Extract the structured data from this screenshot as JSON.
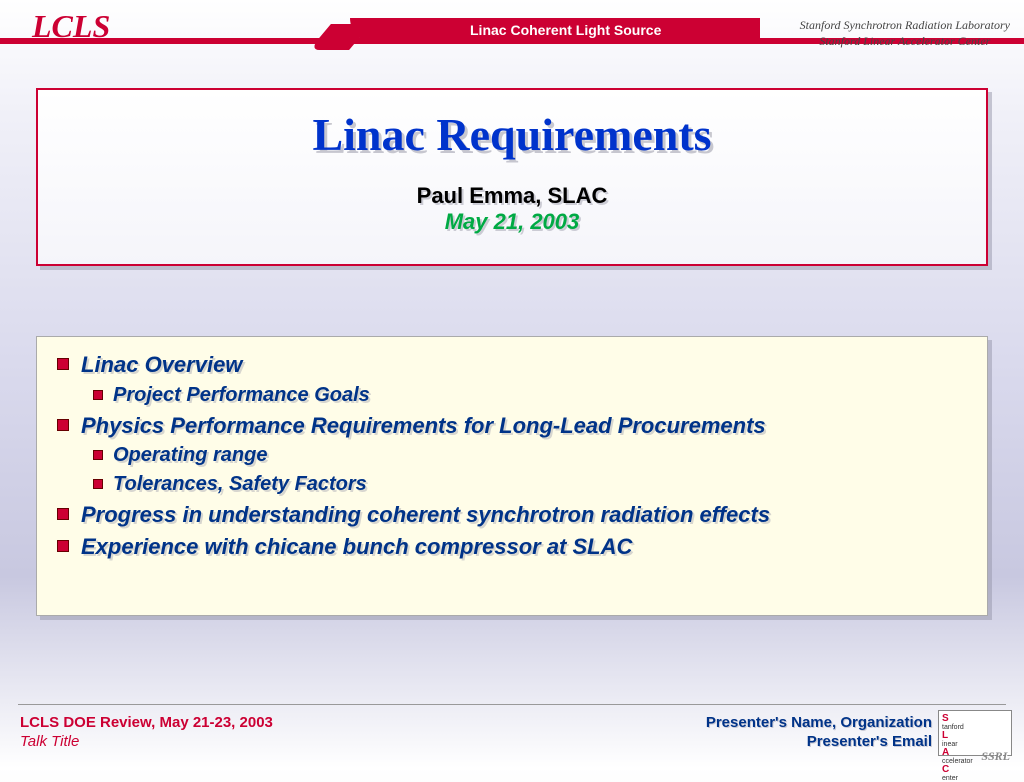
{
  "header": {
    "logo": "LCLS",
    "swoosh_text": "Linac Coherent Light Source",
    "lab_line1": "Stanford Synchrotron Radiation Laboratory",
    "lab_line2": "Stanford Linear Accelerator Center",
    "accent_color": "#cc0033"
  },
  "title_box": {
    "title": "Linac Requirements",
    "author": "Paul Emma, SLAC",
    "date": "May 21, 2003",
    "title_color": "#0033cc",
    "date_color": "#00aa44",
    "border_color": "#cc0033"
  },
  "content": {
    "background_color": "#fffde8",
    "text_color": "#003388",
    "bullet_color": "#cc0033",
    "items": [
      {
        "level": 1,
        "text": "Linac Overview"
      },
      {
        "level": 2,
        "text": "Project Performance Goals"
      },
      {
        "level": 1,
        "text": "Physics Performance Requirements for Long-Lead Procurements"
      },
      {
        "level": 2,
        "text": "Operating range"
      },
      {
        "level": 2,
        "text": "Tolerances, Safety Factors"
      },
      {
        "level": 1,
        "text": "Progress in understanding coherent synchrotron radiation effects"
      },
      {
        "level": 1,
        "text": "Experience with chicane bunch compressor at SLAC"
      }
    ]
  },
  "footer": {
    "review": "LCLS DOE Review, May 21-23, 2003",
    "talk_title": "Talk Title",
    "presenter": "Presenter's Name, Organization",
    "email": "Presenter's Email",
    "ssrl": "SSRL",
    "logo_text": "Stanford\nLinear\nAccelerator\nCenter"
  }
}
